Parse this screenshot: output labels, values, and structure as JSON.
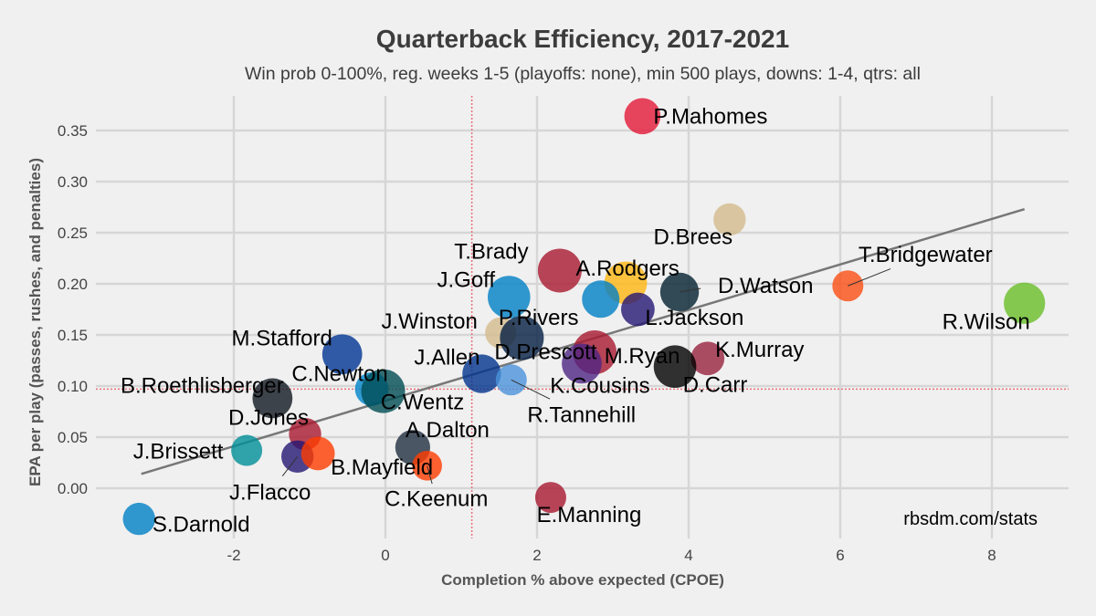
{
  "chart_data": {
    "type": "scatter",
    "title": "Quarterback Efficiency, 2017-2021",
    "subtitle": "Win prob 0-100%, reg. weeks 1-5 (playoffs: none), min 500 plays, downs: 1-4, qtrs: all",
    "xlabel": "Completion % above expected (CPOE)",
    "ylabel": "EPA per play (passes, rushes, and penalties)",
    "caption": "rbsdm.com/stats",
    "xlim": [
      -3.8,
      9.0
    ],
    "ylim": [
      -0.05,
      0.385
    ],
    "x_ticks": [
      -2,
      0,
      2,
      4,
      6,
      8
    ],
    "x_tick_labels": [
      "-2",
      "0",
      "2",
      "4",
      "6",
      "8"
    ],
    "y_ticks": [
      0.0,
      0.05,
      0.1,
      0.15,
      0.2,
      0.25,
      0.3,
      0.35
    ],
    "y_tick_labels": [
      "0.00",
      "0.05",
      "0.10",
      "0.15",
      "0.20",
      "0.25",
      "0.30",
      "0.35"
    ],
    "grid": true,
    "legend": "none",
    "mean_lines": {
      "x": 1.14,
      "y": 0.097,
      "color": "#e8707a"
    },
    "trend_line": {
      "x": [
        -3.22,
        8.43
      ],
      "y": [
        0.014,
        0.273
      ],
      "color": "#777777"
    },
    "points": [
      {
        "name": "P.Mahomes",
        "x": 3.39,
        "y": 0.364,
        "size": 0.7,
        "color": "#e31837"
      },
      {
        "name": "D.Brees",
        "x": 4.54,
        "y": 0.263,
        "size": 0.55,
        "color": "#d3bc8d"
      },
      {
        "name": "T.Brady",
        "x": 2.3,
        "y": 0.213,
        "size": 1.0,
        "color": "#a71930"
      },
      {
        "name": "A.Rodgers",
        "x": 3.17,
        "y": 0.201,
        "size": 0.95,
        "color": "#ffb612"
      },
      {
        "name": "J.Goff",
        "x": 1.63,
        "y": 0.187,
        "size": 0.95,
        "color": "#0080c6"
      },
      {
        "name": "P.Rivers",
        "x": 2.84,
        "y": 0.185,
        "size": 0.75,
        "color": "#0080c6"
      },
      {
        "name": "L.Jackson",
        "x": 3.33,
        "y": 0.175,
        "size": 0.6,
        "color": "#241773"
      },
      {
        "name": "D.Watson",
        "x": 3.88,
        "y": 0.192,
        "size": 0.8,
        "color": "#03202f"
      },
      {
        "name": "T.Bridgewater",
        "x": 6.1,
        "y": 0.198,
        "size": 0.5,
        "color": "#fb4f14"
      },
      {
        "name": "R.Wilson",
        "x": 8.43,
        "y": 0.181,
        "size": 0.9,
        "color": "#69be28"
      },
      {
        "name": "J.Winston",
        "x": 1.52,
        "y": 0.152,
        "size": 0.5,
        "color": "#d3bc8d"
      },
      {
        "name": "D.Prescott",
        "x": 1.8,
        "y": 0.147,
        "size": 1.0,
        "color": "#041e42"
      },
      {
        "name": "M.Stafford",
        "x": -0.57,
        "y": 0.131,
        "size": 0.85,
        "color": "#003594"
      },
      {
        "name": "M.Ryan",
        "x": 2.76,
        "y": 0.133,
        "size": 1.0,
        "color": "#a71930"
      },
      {
        "name": "K.Cousins",
        "x": 2.59,
        "y": 0.122,
        "size": 0.85,
        "color": "#4f2683"
      },
      {
        "name": "K.Murray",
        "x": 4.25,
        "y": 0.127,
        "size": 0.6,
        "color": "#97233f"
      },
      {
        "name": "D.Carr",
        "x": 3.82,
        "y": 0.119,
        "size": 0.95,
        "color": "#000000"
      },
      {
        "name": "J.Allen",
        "x": 1.27,
        "y": 0.112,
        "size": 0.8,
        "color": "#00338d"
      },
      {
        "name": "R.Tannehill",
        "x": 1.66,
        "y": 0.106,
        "size": 0.5,
        "color": "#4b92db"
      },
      {
        "name": "C.Newton",
        "x": -0.18,
        "y": 0.097,
        "size": 0.6,
        "color": "#0085ca"
      },
      {
        "name": "C.Wentz",
        "x": -0.03,
        "y": 0.095,
        "size": 1.0,
        "color": "#004c54"
      },
      {
        "name": "B.Roethlisberger",
        "x": -1.49,
        "y": 0.088,
        "size": 0.85,
        "color": "#101820"
      },
      {
        "name": "D.Jones",
        "x": -1.06,
        "y": 0.053,
        "size": 0.55,
        "color": "#a71930"
      },
      {
        "name": "J.Brissett",
        "x": -1.83,
        "y": 0.037,
        "size": 0.5,
        "color": "#008e97"
      },
      {
        "name": "J.Flacco",
        "x": -1.16,
        "y": 0.031,
        "size": 0.55,
        "color": "#241773"
      },
      {
        "name": "B.Mayfield",
        "x": -0.89,
        "y": 0.034,
        "size": 0.6,
        "color": "#ff3c00"
      },
      {
        "name": "A.Dalton",
        "x": 0.36,
        "y": 0.04,
        "size": 0.65,
        "color": "#203040"
      },
      {
        "name": "C.Keenum",
        "x": 0.55,
        "y": 0.022,
        "size": 0.45,
        "color": "#ff3c00"
      },
      {
        "name": "E.Manning",
        "x": 2.18,
        "y": -0.009,
        "size": 0.5,
        "color": "#a71930"
      },
      {
        "name": "S.Darnold",
        "x": -3.25,
        "y": -0.03,
        "size": 0.55,
        "color": "#0080c6"
      }
    ]
  }
}
